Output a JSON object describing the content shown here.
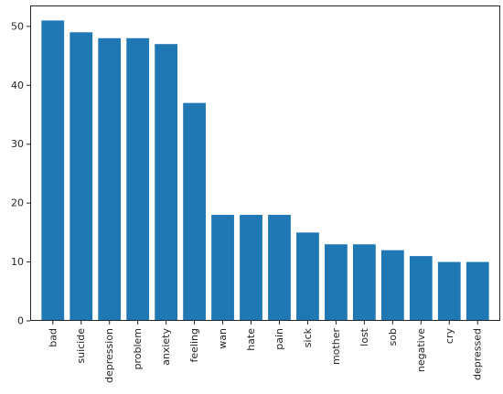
{
  "chart_data": {
    "type": "bar",
    "title": "",
    "xlabel": "",
    "ylabel": "",
    "categories": [
      "bad",
      "suicide",
      "depression",
      "problem",
      "anxiety",
      "feeling",
      "wan",
      "hate",
      "pain",
      "sick",
      "mother",
      "lost",
      "sob",
      "negative",
      "cry",
      "depressed"
    ],
    "values": [
      51,
      49,
      48,
      48,
      47,
      37,
      18,
      18,
      18,
      15,
      13,
      13,
      12,
      11,
      10,
      10
    ],
    "yticks": [
      0,
      10,
      20,
      30,
      40,
      50
    ],
    "ylim": [
      0,
      53.55
    ],
    "grid": false,
    "legend": "none",
    "bar_color": "#1f77b4",
    "x_tick_rotation": "vertical"
  }
}
